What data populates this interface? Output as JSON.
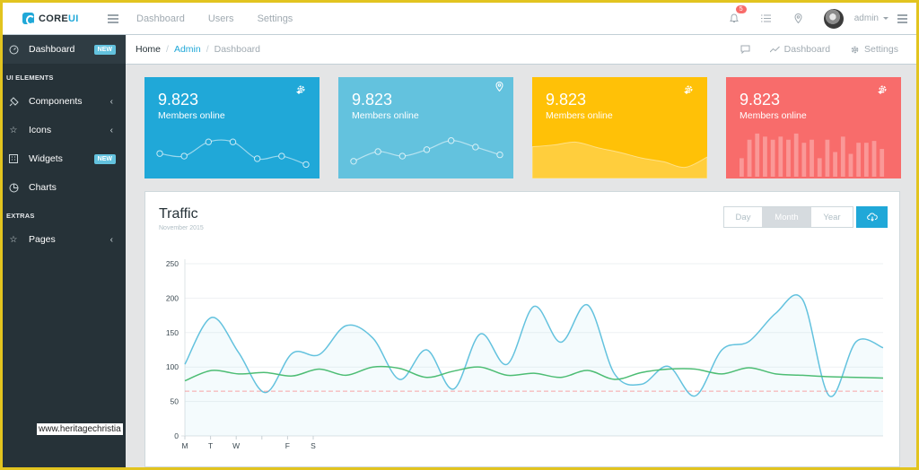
{
  "brand": {
    "name_prefix": "CORE",
    "name_suffix": "UI"
  },
  "topnav": [
    "Dashboard",
    "Users",
    "Settings"
  ],
  "header": {
    "notifications_count": "5",
    "user_name": "admin"
  },
  "sidebar": {
    "items": [
      {
        "label": "Dashboard",
        "icon": "speedometer-icon",
        "badge": "NEW"
      },
      {
        "section": "UI ELEMENTS"
      },
      {
        "label": "Components",
        "icon": "puzzle-icon",
        "chevron": true
      },
      {
        "label": "Icons",
        "icon": "star-icon",
        "chevron": true
      },
      {
        "label": "Widgets",
        "icon": "calculator-icon",
        "badge": "NEW"
      },
      {
        "label": "Charts",
        "icon": "pie-chart-icon"
      },
      {
        "section": "EXTRAS"
      },
      {
        "label": "Pages",
        "icon": "star-icon",
        "chevron": true
      }
    ]
  },
  "breadcrumb": {
    "home": "Home",
    "admin": "Admin",
    "current": "Dashboard",
    "right_dashboard": "Dashboard",
    "right_settings": "Settings"
  },
  "cards": [
    {
      "value": "9.823",
      "label": "Members online",
      "icon": "gear-icon",
      "color": "#20a8d8",
      "spark": [
        2.2,
        1.8,
        4.0,
        4.0,
        1.4,
        1.8,
        0.5
      ]
    },
    {
      "value": "9.823",
      "label": "Members online",
      "icon": "location-pin-icon",
      "color": "#63c2de",
      "spark": [
        1.0,
        2.5,
        1.8,
        2.8,
        4.2,
        3.2,
        2.0
      ]
    },
    {
      "value": "9.823",
      "label": "Members online",
      "icon": "gear-icon",
      "color": "#ffc107",
      "spark": [
        3.4,
        3.6,
        3.9,
        3.3,
        2.8,
        2.2,
        1.8,
        1.2,
        2.3
      ]
    },
    {
      "value": "9.823",
      "label": "Members online",
      "icon": "gear-icon",
      "color": "#f86c6b",
      "bars": [
        3,
        6,
        7,
        6.5,
        6,
        6.5,
        6,
        7,
        5.5,
        6,
        3,
        6,
        4,
        6.5,
        3.7,
        5.5,
        5.5,
        5.8,
        4.5
      ]
    }
  ],
  "traffic": {
    "title": "Traffic",
    "subtitle": "November 2015",
    "periods": [
      "Day",
      "Month",
      "Year"
    ],
    "active_period": "Month"
  },
  "chart_data": {
    "type": "line",
    "title": "Traffic",
    "ylim": [
      0,
      250
    ],
    "yticks": [
      0,
      50,
      100,
      150,
      200,
      250
    ],
    "xticks": [
      "M",
      "T",
      "W",
      "",
      "F",
      "S"
    ],
    "series": [
      {
        "color": "#63c2de",
        "values": [
          104,
          172,
          121,
          63,
          120,
          118,
          160,
          142,
          82,
          125,
          68,
          148,
          104,
          188,
          136,
          190,
          90,
          75,
          101,
          58,
          125,
          137,
          178,
          198,
          58,
          137,
          128
        ]
      },
      {
        "color": "#4dbd74",
        "values": [
          80,
          95,
          90,
          92,
          87,
          97,
          88,
          100,
          98,
          85,
          94,
          100,
          88,
          91,
          85,
          95,
          82,
          92,
          97,
          97,
          90,
          99,
          90,
          88,
          86,
          85,
          84
        ]
      },
      {
        "color": "#f86c6b",
        "values": [
          65,
          65
        ]
      }
    ]
  },
  "watermark": "www.heritagechristia"
}
